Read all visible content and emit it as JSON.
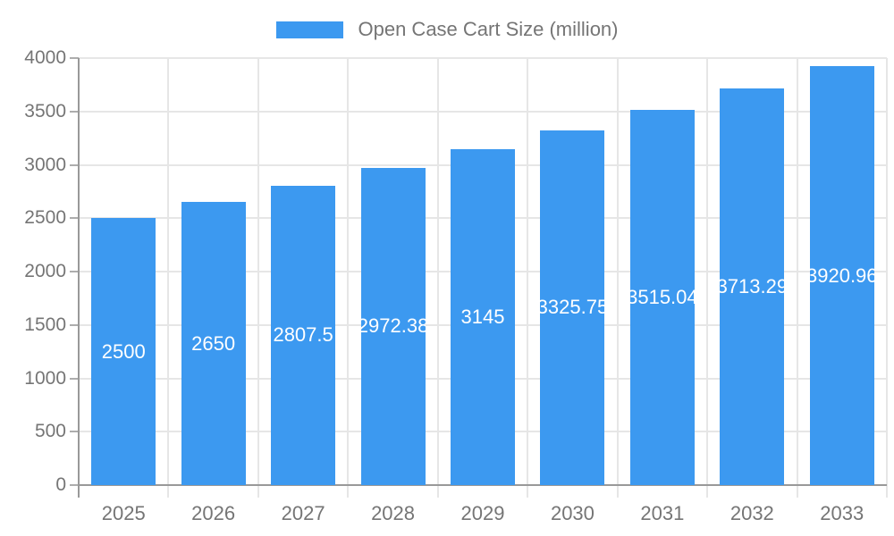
{
  "legend": {
    "label": "Open Case Cart Size (million)"
  },
  "chart_data": {
    "type": "bar",
    "title": "",
    "series_name": "Open Case Cart Size (million)",
    "categories": [
      "2025",
      "2026",
      "2027",
      "2028",
      "2029",
      "2030",
      "2031",
      "2032",
      "2033"
    ],
    "values": [
      2500,
      2650,
      2807.5,
      2972.38,
      3145,
      3325.75,
      3515.04,
      3713.29,
      3920.96
    ],
    "value_labels": [
      "2500",
      "2650",
      "2807.5",
      "2972.38",
      "3145",
      "3325.75",
      "3515.04",
      "3713.29",
      "3920.96"
    ],
    "xlabel": "",
    "ylabel": "",
    "ylim": [
      0,
      4000
    ],
    "y_ticks": [
      0,
      500,
      1000,
      1500,
      2000,
      2500,
      3000,
      3500,
      4000
    ],
    "y_tick_labels": [
      "0",
      "500",
      "1000",
      "1500",
      "2000",
      "2500",
      "3000",
      "3500",
      "4000"
    ],
    "grid": true,
    "legend_position": "top",
    "colors": {
      "bar": "#3C99F0",
      "bar_label_text": "#FFFFFF",
      "gridline": "#E6E6E6",
      "axis_line": "#999999",
      "tick_mark": "#ADADAD",
      "axis_label_text": "#757575",
      "legend_text": "#757575",
      "background": "#FFFFFF"
    }
  }
}
